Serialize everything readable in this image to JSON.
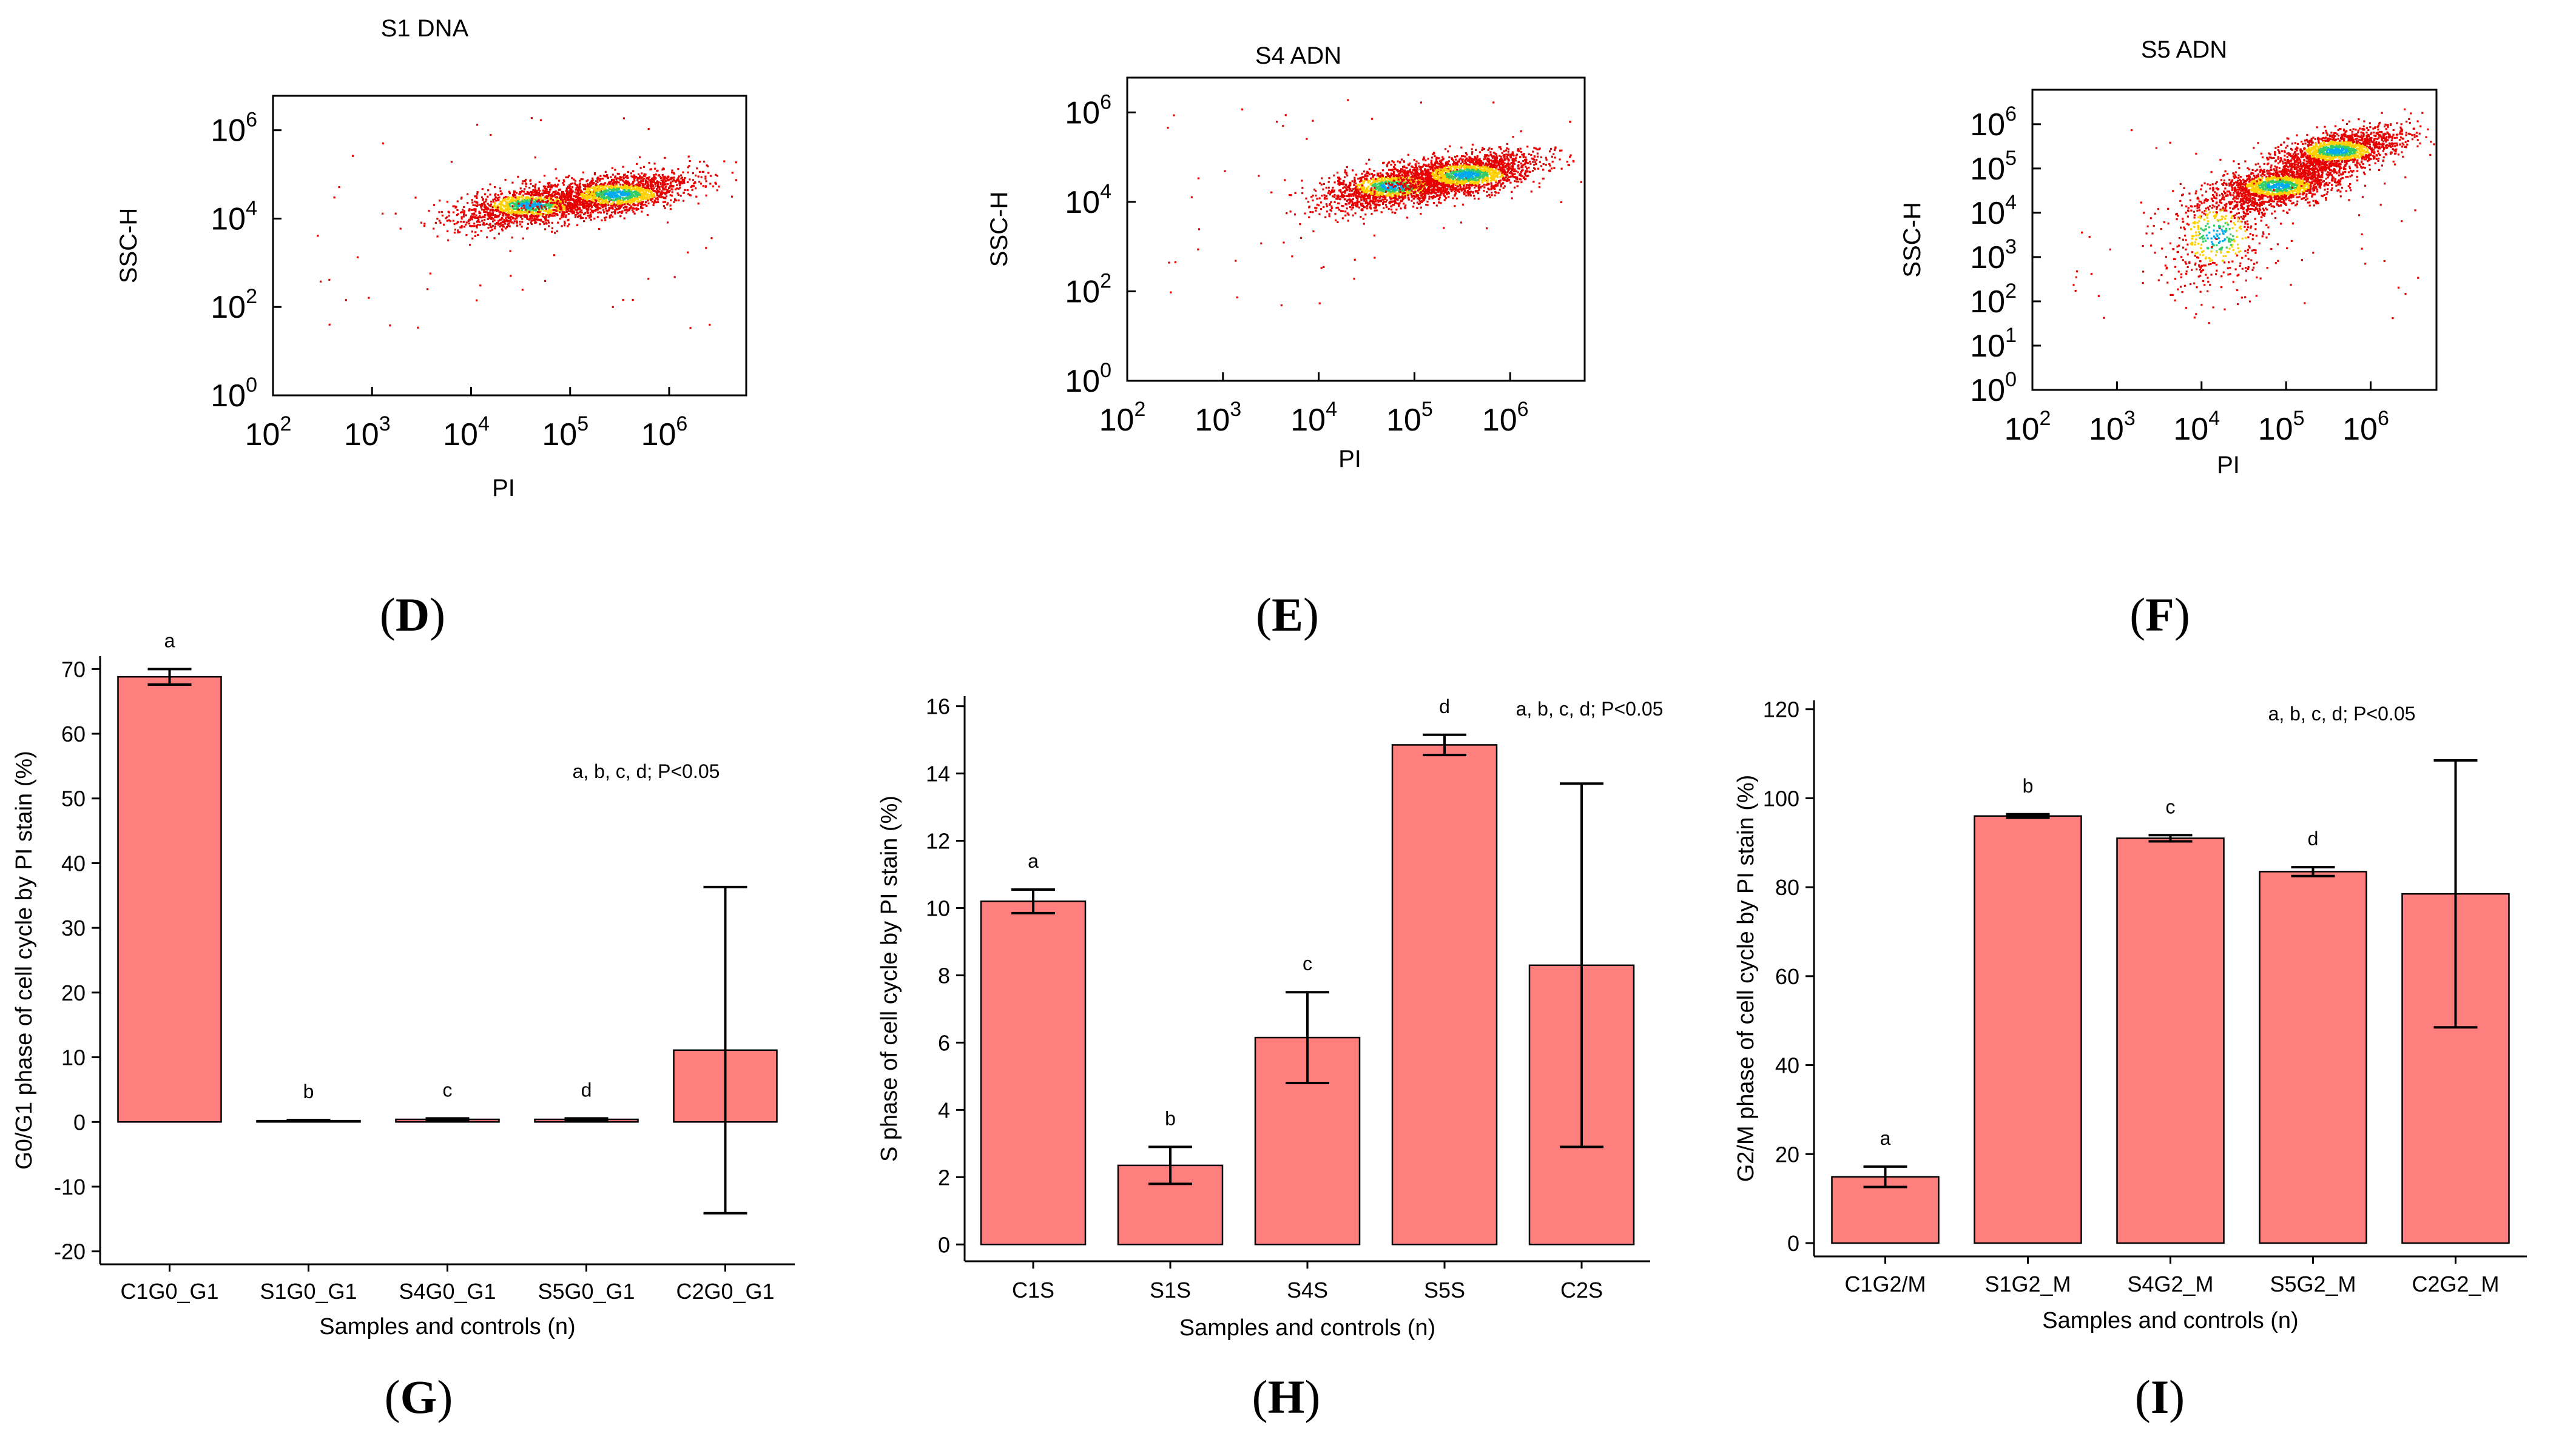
{
  "panel_labels": [
    "(D)",
    "(E)",
    "(F)",
    "(G)",
    "(H)",
    "(I)"
  ],
  "chart_data": [
    {
      "type": "scatter",
      "title": "S1 DNA",
      "xlabel": "PI",
      "ylabel": "SSC-H",
      "x_scale": "log",
      "y_scale": "log",
      "xlim": [
        100,
        6000000
      ],
      "ylim": [
        1,
        6000000
      ],
      "x_ticks": [
        {
          "base": "10",
          "exp": "2"
        },
        {
          "base": "10",
          "exp": "3"
        },
        {
          "base": "10",
          "exp": "4"
        },
        {
          "base": "10",
          "exp": "5"
        },
        {
          "base": "10",
          "exp": "6"
        }
      ],
      "y_ticks": [
        {
          "base": "10",
          "exp": "0"
        },
        {
          "base": "10",
          "exp": "2"
        },
        {
          "base": "10",
          "exp": "4"
        },
        {
          "base": "10",
          "exp": "6"
        }
      ],
      "point_color": "#e60000",
      "density_colors": [
        "#ffd000",
        "#33cc66",
        "#00aaee"
      ],
      "clusters": [
        {
          "x": 40000,
          "y": 20000,
          "count": 1400
        },
        {
          "x": 300000,
          "y": 35000,
          "count": 1600
        }
      ]
    },
    {
      "type": "scatter",
      "title": "S4 ADN",
      "xlabel": "PI",
      "ylabel": "SSC-H",
      "x_scale": "log",
      "y_scale": "log",
      "xlim": [
        100,
        6000000
      ],
      "ylim": [
        1,
        6000000
      ],
      "x_ticks": [
        {
          "base": "10",
          "exp": "2"
        },
        {
          "base": "10",
          "exp": "3"
        },
        {
          "base": "10",
          "exp": "4"
        },
        {
          "base": "10",
          "exp": "5"
        },
        {
          "base": "10",
          "exp": "6"
        }
      ],
      "y_ticks": [
        {
          "base": "10",
          "exp": "0"
        },
        {
          "base": "10",
          "exp": "2"
        },
        {
          "base": "10",
          "exp": "4"
        },
        {
          "base": "10",
          "exp": "6"
        }
      ],
      "point_color": "#e60000",
      "density_colors": [
        "#ffd000",
        "#33cc66",
        "#00aaee"
      ],
      "clusters": [
        {
          "x": 60000,
          "y": 22000,
          "count": 1500
        },
        {
          "x": 350000,
          "y": 40000,
          "count": 1700
        }
      ]
    },
    {
      "type": "scatter",
      "title": "S5 ADN",
      "xlabel": "PI",
      "ylabel": "SSC-H",
      "x_scale": "log",
      "y_scale": "log",
      "xlim": [
        100,
        6000000
      ],
      "ylim": [
        1,
        6000000
      ],
      "x_ticks": [
        {
          "base": "10",
          "exp": "2"
        },
        {
          "base": "10",
          "exp": "3"
        },
        {
          "base": "10",
          "exp": "4"
        },
        {
          "base": "10",
          "exp": "5"
        },
        {
          "base": "10",
          "exp": "6"
        }
      ],
      "y_ticks": [
        {
          "base": "10",
          "exp": "0"
        },
        {
          "base": "10",
          "exp": "1"
        },
        {
          "base": "10",
          "exp": "2"
        },
        {
          "base": "10",
          "exp": "3"
        },
        {
          "base": "10",
          "exp": "4"
        },
        {
          "base": "10",
          "exp": "5"
        },
        {
          "base": "10",
          "exp": "6"
        }
      ],
      "point_color": "#e60000",
      "density_colors": [
        "#ffd000",
        "#33cc66",
        "#00aaee"
      ],
      "clusters": [
        {
          "x": 80000,
          "y": 40000,
          "count": 1600
        },
        {
          "x": 400000,
          "y": 250000,
          "count": 1500
        },
        {
          "x": 15000,
          "y": 3000,
          "count": 500
        }
      ]
    },
    {
      "type": "bar",
      "categories": [
        "C1G0_G1",
        "S1G0_G1",
        "S4G0_G1",
        "S5G0_G1",
        "C2G0_G1"
      ],
      "values": [
        68.8,
        0.2,
        0.4,
        0.4,
        11.1
      ],
      "errors": [
        1.2,
        0.1,
        0.15,
        0.15,
        25.2
      ],
      "significance_letters": [
        "a",
        "b",
        "c",
        "d",
        ""
      ],
      "annotation": "a, b, c, d; P<0.05",
      "xlabel": "Samples and controls (n)",
      "ylabel": "G0/G1 phase of cell cycle by PI stain (%)",
      "ylim": [
        -22,
        72
      ],
      "yticks": [
        -20,
        -10,
        0,
        10,
        20,
        30,
        40,
        50,
        60,
        70
      ],
      "bar_color": "#ff7f7f"
    },
    {
      "type": "bar",
      "categories": [
        "C1S",
        "S1S",
        "S4S",
        "S5S",
        "C2S"
      ],
      "values": [
        10.2,
        2.35,
        6.15,
        14.85,
        8.3
      ],
      "errors": [
        0.35,
        0.55,
        1.35,
        0.3,
        5.4
      ],
      "significance_letters": [
        "a",
        "b",
        "c",
        "d",
        ""
      ],
      "annotation": "a, b, c, d; P<0.05",
      "xlabel": "Samples and controls (n)",
      "ylabel": "S phase of cell cycle by PI stain (%)",
      "ylim": [
        -0.5,
        16.3
      ],
      "yticks": [
        0,
        2,
        4,
        6,
        8,
        10,
        12,
        14,
        16
      ],
      "bar_color": "#ff7f7f"
    },
    {
      "type": "bar",
      "categories": [
        "C1G2/M",
        "S1G2_M",
        "S4G2_M",
        "S5G2_M",
        "C2G2_M"
      ],
      "values": [
        14.9,
        96.0,
        91.0,
        83.5,
        78.5
      ],
      "errors": [
        2.3,
        0.4,
        0.7,
        1.0,
        30.0
      ],
      "significance_letters": [
        "a",
        "b",
        "c",
        "d",
        ""
      ],
      "annotation": "a, b, c, d; P<0.05",
      "xlabel": "Samples and controls (n)",
      "ylabel": "G2/M phase of cell cycle by PI stain (%)",
      "ylim": [
        -3,
        122
      ],
      "yticks": [
        0,
        20,
        40,
        60,
        80,
        100,
        120
      ],
      "bar_color": "#ff7f7f"
    }
  ]
}
